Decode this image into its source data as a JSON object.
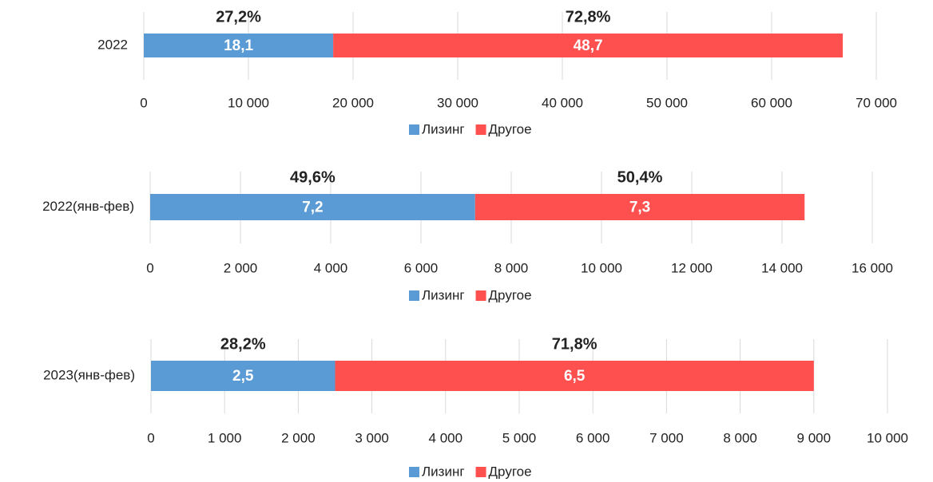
{
  "chart_data": [
    {
      "type": "bar",
      "orientation": "horizontal",
      "stacked": true,
      "categories": [
        "2022"
      ],
      "series": [
        {
          "name": "Лизинг",
          "color": "#5b9bd5",
          "values": [
            18100
          ],
          "value_labels": [
            "18,1"
          ],
          "share_label": "27,2%",
          "share_color": "#2e75b6"
        },
        {
          "name": "Другое",
          "color": "#ff5050",
          "values": [
            48700
          ],
          "value_labels": [
            "48,7"
          ],
          "share_label": "72,8%",
          "share_color": "#c00000"
        }
      ],
      "xlim": [
        0,
        70000
      ],
      "xticks": [
        0,
        {
          "value": 10000,
          "label": "10 000"
        },
        {
          "value": 20000,
          "label": "20 000"
        },
        {
          "value": 30000,
          "label": "30 000"
        },
        {
          "value": 40000,
          "label": "40 000"
        },
        {
          "value": 50000,
          "label": "50 000"
        },
        {
          "value": 60000,
          "label": "60 000"
        },
        {
          "value": 70000,
          "label": "70 000"
        }
      ],
      "grid": true,
      "legend": "bottom"
    },
    {
      "type": "bar",
      "orientation": "horizontal",
      "stacked": true,
      "categories": [
        "2022(янв-фев)"
      ],
      "series": [
        {
          "name": "Лизинг",
          "color": "#5b9bd5",
          "values": [
            7200
          ],
          "value_labels": [
            "7,2"
          ],
          "share_label": "49,6%",
          "share_color": "#2e75b6"
        },
        {
          "name": "Другое",
          "color": "#ff5050",
          "values": [
            7300
          ],
          "value_labels": [
            "7,3"
          ],
          "share_label": "50,4%",
          "share_color": "#c00000"
        }
      ],
      "xlim": [
        0,
        16000
      ],
      "xticks": [
        0,
        {
          "value": 2000,
          "label": "2 000"
        },
        {
          "value": 4000,
          "label": "4 000"
        },
        {
          "value": 6000,
          "label": "6 000"
        },
        {
          "value": 8000,
          "label": "8 000"
        },
        {
          "value": 10000,
          "label": "10 000"
        },
        {
          "value": 12000,
          "label": "12 000"
        },
        {
          "value": 14000,
          "label": "14 000"
        },
        {
          "value": 16000,
          "label": "16 000"
        }
      ],
      "grid": true,
      "legend": "bottom"
    },
    {
      "type": "bar",
      "orientation": "horizontal",
      "stacked": true,
      "categories": [
        "2023(янв-фев)"
      ],
      "series": [
        {
          "name": "Лизинг",
          "color": "#5b9bd5",
          "values": [
            2500
          ],
          "value_labels": [
            "2,5"
          ],
          "share_label": "28,2%",
          "share_color": "#2e75b6"
        },
        {
          "name": "Другое",
          "color": "#ff5050",
          "values": [
            6500
          ],
          "value_labels": [
            "6,5"
          ],
          "share_label": "71,8%",
          "share_color": "#c00000"
        }
      ],
      "xlim": [
        0,
        10000
      ],
      "xticks": [
        0,
        {
          "value": 1000,
          "label": "1 000"
        },
        {
          "value": 2000,
          "label": "2 000"
        },
        {
          "value": 3000,
          "label": "3 000"
        },
        {
          "value": 4000,
          "label": "4 000"
        },
        {
          "value": 5000,
          "label": "5 000"
        },
        {
          "value": 6000,
          "label": "6 000"
        },
        {
          "value": 7000,
          "label": "7 000"
        },
        {
          "value": 8000,
          "label": "8 000"
        },
        {
          "value": 9000,
          "label": "9 000"
        },
        {
          "value": 10000,
          "label": "10 000"
        }
      ],
      "grid": true,
      "legend": "bottom"
    }
  ]
}
